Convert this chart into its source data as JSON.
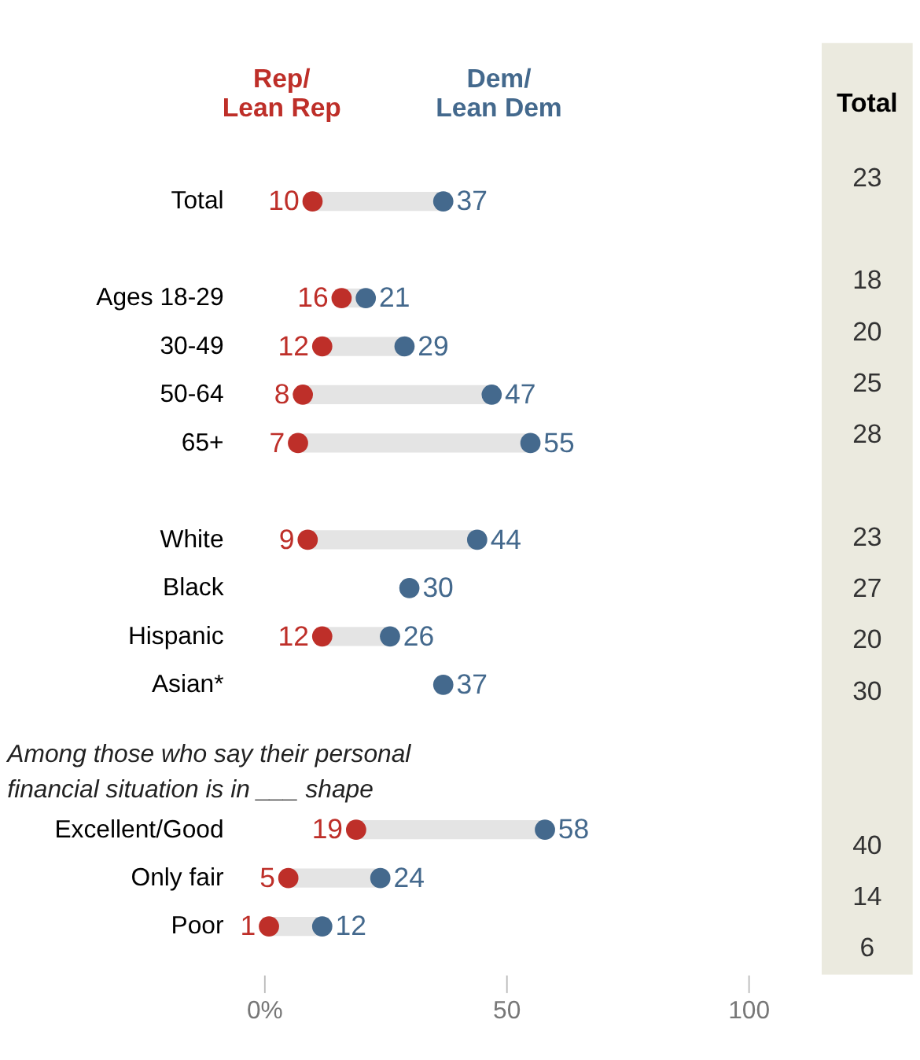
{
  "chart_data": [
    {
      "type": "scatter",
      "categories": [
        "Total",
        null,
        "Ages 18-29",
        "30-49",
        "50-64",
        "65+",
        null,
        "White",
        "Black",
        "Hispanic",
        "Asian*",
        null,
        null,
        "Excellent/Good",
        "Only fair",
        "Poor"
      ],
      "series": [
        {
          "name": "Rep/ Lean Rep",
          "color": "#be2f29",
          "values": [
            10,
            null,
            16,
            12,
            8,
            7,
            null,
            9,
            null,
            12,
            null,
            null,
            null,
            19,
            5,
            1
          ]
        },
        {
          "name": "Dem/ Lean Dem",
          "color": "#44698d",
          "values": [
            37,
            null,
            21,
            29,
            47,
            55,
            null,
            44,
            30,
            26,
            37,
            null,
            null,
            58,
            24,
            12
          ]
        }
      ],
      "orientation": "horizontal",
      "xlim": [
        0,
        100
      ],
      "xticks": [
        {
          "value": 0,
          "label": "0%"
        },
        {
          "value": 50,
          "label": "50"
        },
        {
          "value": 100,
          "label": "100"
        }
      ],
      "data_labels": true,
      "legend": "top",
      "marker": "circle",
      "annotations": [
        "Among those who say their personal financial situation is in ___ shape"
      ]
    },
    {
      "type": "other",
      "title": "Total",
      "values": [
        23,
        null,
        18,
        20,
        25,
        28,
        null,
        23,
        27,
        20,
        30,
        null,
        null,
        40,
        14,
        6
      ],
      "data_labels": true
    }
  ]
}
